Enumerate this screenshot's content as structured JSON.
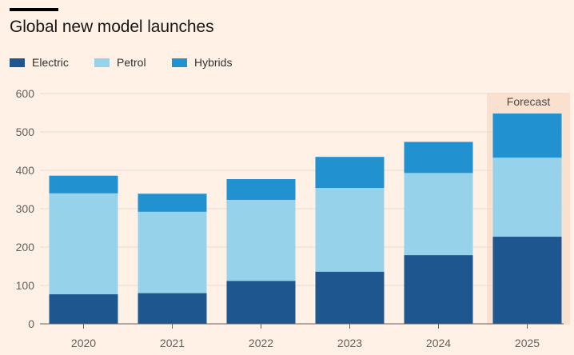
{
  "chart_data": {
    "type": "bar",
    "stacked": true,
    "title": "Global new model launches",
    "xlabel": "",
    "ylabel": "",
    "categories": [
      "2020",
      "2021",
      "2022",
      "2023",
      "2024",
      "2025"
    ],
    "series": [
      {
        "name": "Electric",
        "color": "#1e5690",
        "values": [
          77,
          80,
          112,
          136,
          179,
          227
        ]
      },
      {
        "name": "Petrol",
        "color": "#96d3ea",
        "values": [
          263,
          212,
          211,
          218,
          214,
          206
        ]
      },
      {
        "name": "Hybrids",
        "color": "#2191d0",
        "values": [
          46,
          47,
          54,
          81,
          81,
          115
        ]
      }
    ],
    "ylim": [
      0,
      600
    ],
    "yticks": [
      0,
      100,
      200,
      300,
      400,
      500,
      600
    ],
    "grid": true,
    "legend": "top-left",
    "annotations": [
      {
        "label": "Forecast",
        "category": "2025"
      }
    ]
  },
  "colors": {
    "background": "#fff1e5",
    "gridline": "#e9dccf",
    "axis": "#66605c",
    "forecast_band": "#f9e0cf"
  }
}
